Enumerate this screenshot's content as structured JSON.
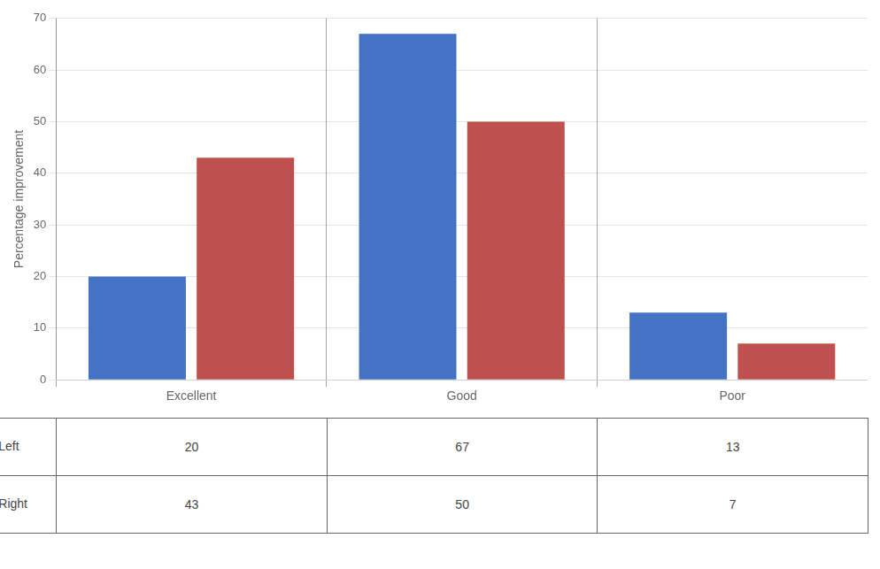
{
  "chart_data": {
    "type": "bar",
    "categories": [
      "Excellent",
      "Good",
      "Poor"
    ],
    "series": [
      {
        "name": "Left",
        "color": "#4472C4",
        "values": [
          20,
          67,
          13
        ]
      },
      {
        "name": "Right",
        "color": "#C0504D",
        "values": [
          43,
          50,
          7
        ]
      }
    ],
    "ylabel": "Percentage improvement",
    "ylim": [
      0,
      70
    ],
    "yticks": [
      0,
      10,
      20,
      30,
      40,
      50,
      60,
      70
    ],
    "grid": true,
    "legend": "bottom"
  }
}
